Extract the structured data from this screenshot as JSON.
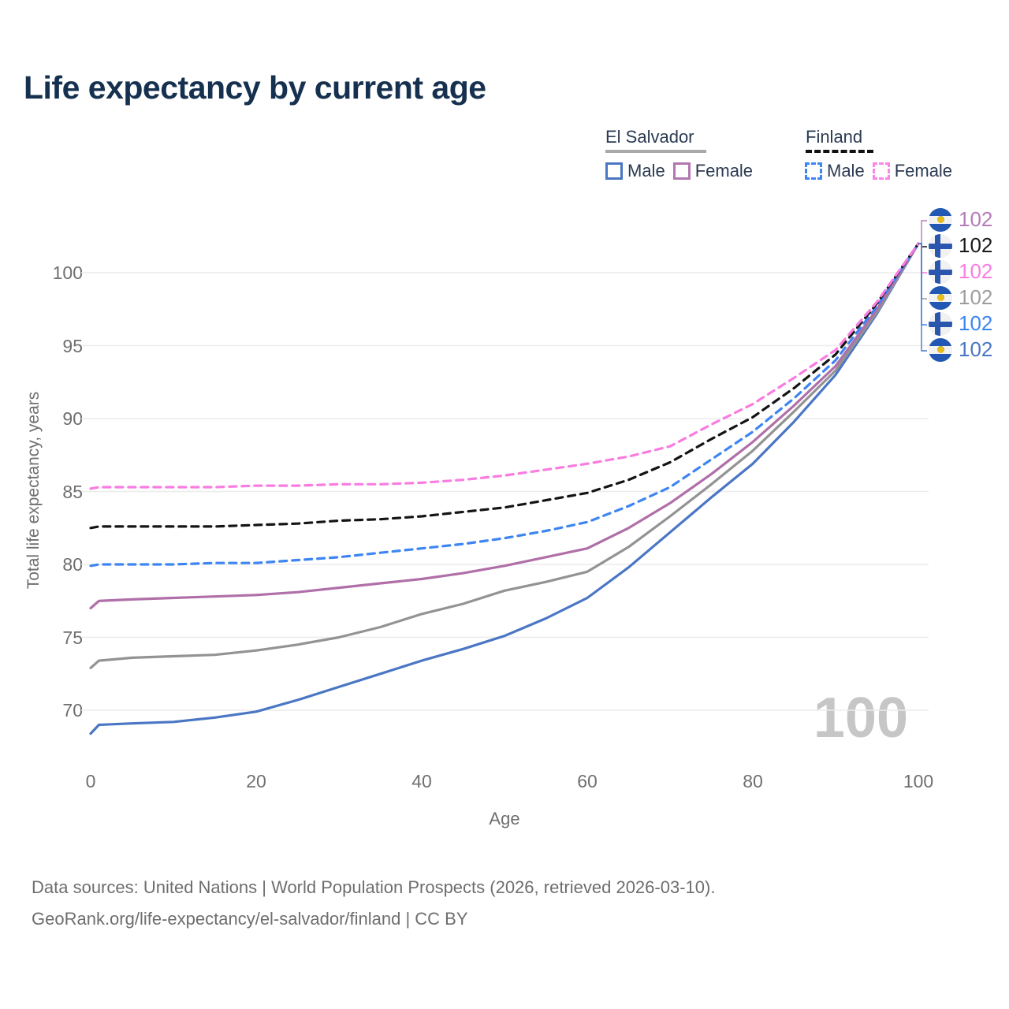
{
  "title": "Life expectancy by current age",
  "legend": {
    "groups": [
      {
        "label": "El Salvador",
        "line_style": "solid",
        "line_color": "#a9a9a9",
        "items": [
          {
            "label": "Male",
            "color": "#4a76c4",
            "style": "solid"
          },
          {
            "label": "Female",
            "color": "#b277ae",
            "style": "solid"
          }
        ]
      },
      {
        "label": "Finland",
        "line_style": "dashed",
        "line_color": "#111111",
        "items": [
          {
            "label": "Male",
            "color": "#3d85f2",
            "style": "dashed"
          },
          {
            "label": "Female",
            "color": "#fb86e8",
            "style": "dashed"
          }
        ]
      }
    ]
  },
  "chart_data": {
    "type": "line",
    "title": "Life expectancy by current age",
    "xlabel": "Age",
    "ylabel": "Total life expectancy, years",
    "xlim": [
      0,
      100
    ],
    "ylim": [
      67,
      103
    ],
    "grid": "horizontal",
    "xticks": [
      0,
      20,
      40,
      60,
      80,
      100
    ],
    "yticks": [
      100,
      95,
      90,
      85,
      80,
      75,
      70
    ],
    "legend_position": "top-right",
    "watermark": "100",
    "x": [
      0,
      1,
      5,
      10,
      15,
      20,
      25,
      30,
      35,
      40,
      45,
      50,
      55,
      60,
      65,
      70,
      75,
      80,
      85,
      90,
      95,
      100
    ],
    "series": [
      {
        "name": "El Salvador Male",
        "country": "El Salvador",
        "sex": "Male",
        "color": "#4a76c4",
        "style": "solid",
        "values": [
          68.4,
          69.0,
          69.1,
          69.2,
          69.5,
          69.9,
          70.7,
          71.6,
          72.5,
          73.4,
          74.2,
          75.1,
          76.3,
          77.7,
          79.8,
          82.2,
          84.6,
          86.9,
          89.8,
          93.0,
          97.2,
          102
        ]
      },
      {
        "name": "El Salvador Both sexes",
        "country": "El Salvador",
        "sex": "Both",
        "color": "#939393",
        "style": "solid",
        "values": [
          72.9,
          73.4,
          73.6,
          73.7,
          73.8,
          74.1,
          74.5,
          75.0,
          75.7,
          76.6,
          77.3,
          78.2,
          78.8,
          79.5,
          81.2,
          83.3,
          85.5,
          87.8,
          90.5,
          93.3,
          97.3,
          102
        ]
      },
      {
        "name": "El Salvador Female",
        "country": "El Salvador",
        "sex": "Female",
        "color": "#b06fa8",
        "style": "solid",
        "values": [
          77.0,
          77.5,
          77.6,
          77.7,
          77.8,
          77.9,
          78.1,
          78.4,
          78.7,
          79.0,
          79.4,
          79.9,
          80.5,
          81.1,
          82.5,
          84.2,
          86.2,
          88.4,
          90.9,
          93.6,
          97.5,
          102
        ]
      },
      {
        "name": "Finland Male",
        "country": "Finland",
        "sex": "Male",
        "color": "#3d85f2",
        "style": "dashed",
        "values": [
          79.9,
          80.0,
          80.0,
          80.0,
          80.1,
          80.1,
          80.3,
          80.5,
          80.8,
          81.1,
          81.4,
          81.8,
          82.3,
          82.9,
          84.0,
          85.3,
          87.2,
          89.1,
          91.4,
          94.0,
          97.7,
          102
        ]
      },
      {
        "name": "Finland Both sexes",
        "country": "Finland",
        "sex": "Both",
        "color": "#141414",
        "style": "dashed",
        "values": [
          82.5,
          82.6,
          82.6,
          82.6,
          82.6,
          82.7,
          82.8,
          83.0,
          83.1,
          83.3,
          83.6,
          83.9,
          84.4,
          84.9,
          85.8,
          87.0,
          88.6,
          90.1,
          92.1,
          94.4,
          97.9,
          102
        ]
      },
      {
        "name": "Finland Female",
        "country": "Finland",
        "sex": "Female",
        "color": "#f97ce1",
        "style": "dashed",
        "values": [
          85.2,
          85.3,
          85.3,
          85.3,
          85.3,
          85.4,
          85.4,
          85.5,
          85.5,
          85.6,
          85.8,
          86.1,
          86.5,
          86.9,
          87.4,
          88.1,
          89.6,
          91.0,
          92.8,
          94.7,
          98.0,
          102
        ]
      }
    ],
    "end_labels": [
      {
        "flag": "el-salvador",
        "series": "El Salvador Female",
        "value": "102",
        "color": "#b57bb9"
      },
      {
        "flag": "finland",
        "series": "Finland Both sexes",
        "value": "102",
        "color": "#1a1a1a"
      },
      {
        "flag": "finland",
        "series": "Finland Female",
        "value": "102",
        "color": "#fa7ce0"
      },
      {
        "flag": "el-salvador",
        "series": "El Salvador Both sexes",
        "value": "102",
        "color": "#9e9e9e"
      },
      {
        "flag": "finland",
        "series": "Finland Male",
        "value": "102",
        "color": "#3d85f2"
      },
      {
        "flag": "el-salvador",
        "series": "El Salvador Male",
        "value": "102",
        "color": "#4a76c4"
      }
    ]
  },
  "footer": {
    "line1": "Data sources: United Nations | World Population Prospects (2026, retrieved 2026-03-10).",
    "line2": "GeoRank.org/life-expectancy/el-salvador/finland | CC BY"
  }
}
